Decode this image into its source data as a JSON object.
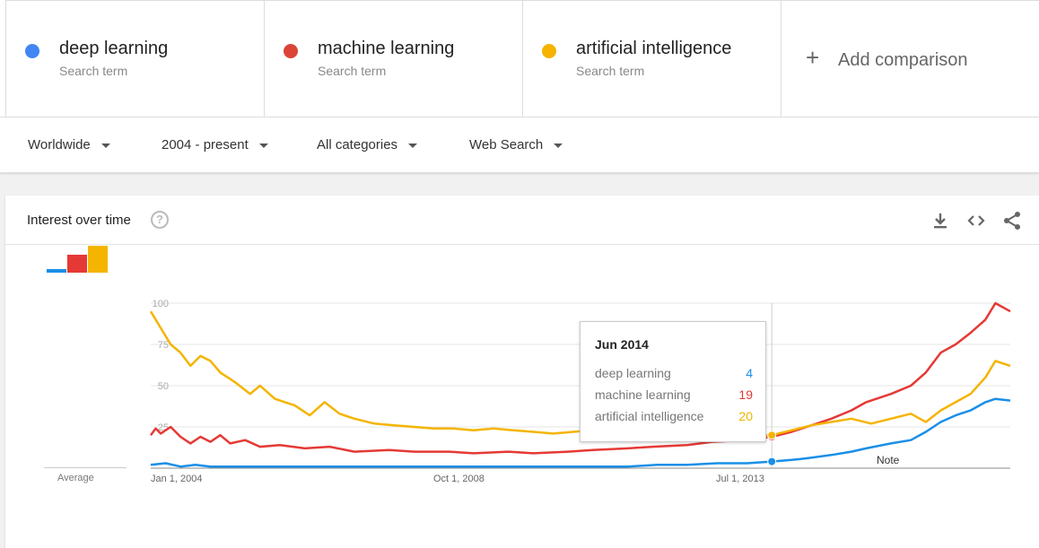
{
  "terms": [
    {
      "name": "deep learning",
      "sub": "Search term",
      "color": "#4285f4"
    },
    {
      "name": "machine learning",
      "sub": "Search term",
      "color": "#db4437"
    },
    {
      "name": "artificial intelligence",
      "sub": "Search term",
      "color": "#f4b400"
    }
  ],
  "add_comparison": {
    "icon": "plus-icon",
    "label": "Add comparison"
  },
  "filters": [
    {
      "label": "Worldwide",
      "icon": "caret-down-icon"
    },
    {
      "label": "2004 - present",
      "icon": "caret-down-icon"
    },
    {
      "label": "All categories",
      "icon": "caret-down-icon"
    },
    {
      "label": "Web Search",
      "icon": "caret-down-icon"
    }
  ],
  "card": {
    "title": "Interest over time",
    "help_icon": "help-icon",
    "help_label": "?",
    "tools": [
      "download-icon",
      "embed-code-icon",
      "share-icon"
    ]
  },
  "average": {
    "label": "Average",
    "values": [
      5,
      22,
      33
    ]
  },
  "tooltip": {
    "date": "Jun 2014",
    "rows": [
      {
        "name": "deep learning",
        "value": "4",
        "color": "#1a8fe8"
      },
      {
        "name": "machine learning",
        "value": "19",
        "color": "#e53935"
      },
      {
        "name": "artificial intelligence",
        "value": "20",
        "color": "#f4b400"
      }
    ]
  },
  "note_label": "Note",
  "chart_data": {
    "type": "line",
    "x_tick_labels": [
      "Jan 1, 2004",
      "Oct 1, 2008",
      "Jul 1, 2013"
    ],
    "ylim": [
      0,
      100
    ],
    "y_ticks": [
      100,
      75,
      50,
      25
    ],
    "grid": true,
    "x_start": "2004-01",
    "x_end": "2018-06",
    "highlight": "2014-06",
    "series": [
      {
        "name": "deep learning",
        "color": "#1a8fe8",
        "points": [
          [
            "2004-01",
            2
          ],
          [
            "2004-04",
            3
          ],
          [
            "2004-07",
            1
          ],
          [
            "2004-10",
            2
          ],
          [
            "2005-01",
            1
          ],
          [
            "2005-06",
            1
          ],
          [
            "2006-01",
            1
          ],
          [
            "2007-01",
            1
          ],
          [
            "2008-01",
            1
          ],
          [
            "2009-01",
            1
          ],
          [
            "2010-01",
            1
          ],
          [
            "2011-01",
            1
          ],
          [
            "2012-01",
            1
          ],
          [
            "2012-07",
            2
          ],
          [
            "2013-01",
            2
          ],
          [
            "2013-07",
            3
          ],
          [
            "2014-01",
            3
          ],
          [
            "2014-06",
            4
          ],
          [
            "2014-10",
            5
          ],
          [
            "2015-01",
            6
          ],
          [
            "2015-06",
            8
          ],
          [
            "2015-10",
            10
          ],
          [
            "2016-01",
            12
          ],
          [
            "2016-06",
            15
          ],
          [
            "2016-10",
            17
          ],
          [
            "2017-01",
            22
          ],
          [
            "2017-04",
            28
          ],
          [
            "2017-07",
            32
          ],
          [
            "2017-10",
            35
          ],
          [
            "2018-01",
            40
          ],
          [
            "2018-03",
            42
          ],
          [
            "2018-06",
            41
          ]
        ]
      },
      {
        "name": "machine learning",
        "color": "#e53935",
        "points": [
          [
            "2004-01",
            20
          ],
          [
            "2004-02",
            24
          ],
          [
            "2004-03",
            21
          ],
          [
            "2004-05",
            25
          ],
          [
            "2004-07",
            19
          ],
          [
            "2004-09",
            15
          ],
          [
            "2004-11",
            19
          ],
          [
            "2005-01",
            16
          ],
          [
            "2005-03",
            20
          ],
          [
            "2005-05",
            15
          ],
          [
            "2005-08",
            17
          ],
          [
            "2005-11",
            13
          ],
          [
            "2006-03",
            14
          ],
          [
            "2006-08",
            12
          ],
          [
            "2007-01",
            13
          ],
          [
            "2007-06",
            10
          ],
          [
            "2008-01",
            11
          ],
          [
            "2008-06",
            10
          ],
          [
            "2009-01",
            10
          ],
          [
            "2009-06",
            9
          ],
          [
            "2010-01",
            10
          ],
          [
            "2010-06",
            9
          ],
          [
            "2011-01",
            10
          ],
          [
            "2011-06",
            11
          ],
          [
            "2012-01",
            12
          ],
          [
            "2012-06",
            13
          ],
          [
            "2013-01",
            14
          ],
          [
            "2013-06",
            16
          ],
          [
            "2014-01",
            17
          ],
          [
            "2014-06",
            19
          ],
          [
            "2014-10",
            22
          ],
          [
            "2015-01",
            25
          ],
          [
            "2015-06",
            30
          ],
          [
            "2015-10",
            35
          ],
          [
            "2016-01",
            40
          ],
          [
            "2016-06",
            45
          ],
          [
            "2016-10",
            50
          ],
          [
            "2017-01",
            58
          ],
          [
            "2017-04",
            70
          ],
          [
            "2017-07",
            75
          ],
          [
            "2017-10",
            82
          ],
          [
            "2018-01",
            90
          ],
          [
            "2018-03",
            100
          ],
          [
            "2018-06",
            95
          ]
        ]
      },
      {
        "name": "artificial intelligence",
        "color": "#f4b400",
        "points": [
          [
            "2004-01",
            95
          ],
          [
            "2004-03",
            85
          ],
          [
            "2004-05",
            75
          ],
          [
            "2004-07",
            70
          ],
          [
            "2004-09",
            62
          ],
          [
            "2004-11",
            68
          ],
          [
            "2005-01",
            65
          ],
          [
            "2005-03",
            58
          ],
          [
            "2005-06",
            52
          ],
          [
            "2005-09",
            45
          ],
          [
            "2005-11",
            50
          ],
          [
            "2006-02",
            42
          ],
          [
            "2006-06",
            38
          ],
          [
            "2006-09",
            32
          ],
          [
            "2006-12",
            40
          ],
          [
            "2007-03",
            33
          ],
          [
            "2007-06",
            30
          ],
          [
            "2007-10",
            27
          ],
          [
            "2008-02",
            26
          ],
          [
            "2008-06",
            25
          ],
          [
            "2008-10",
            24
          ],
          [
            "2009-02",
            24
          ],
          [
            "2009-06",
            23
          ],
          [
            "2009-10",
            24
          ],
          [
            "2010-02",
            23
          ],
          [
            "2010-06",
            22
          ],
          [
            "2010-10",
            21
          ],
          [
            "2011-02",
            22
          ],
          [
            "2011-06",
            23
          ],
          [
            "2011-10",
            22
          ],
          [
            "2012-02",
            21
          ],
          [
            "2012-06",
            22
          ],
          [
            "2012-10",
            21
          ],
          [
            "2013-02",
            20
          ],
          [
            "2013-06",
            20
          ],
          [
            "2013-10",
            20
          ],
          [
            "2014-02",
            20
          ],
          [
            "2014-06",
            20
          ],
          [
            "2014-10",
            23
          ],
          [
            "2015-02",
            26
          ],
          [
            "2015-06",
            28
          ],
          [
            "2015-10",
            30
          ],
          [
            "2016-02",
            27
          ],
          [
            "2016-06",
            30
          ],
          [
            "2016-10",
            33
          ],
          [
            "2017-01",
            28
          ],
          [
            "2017-04",
            35
          ],
          [
            "2017-07",
            40
          ],
          [
            "2017-10",
            45
          ],
          [
            "2018-01",
            55
          ],
          [
            "2018-03",
            65
          ],
          [
            "2018-06",
            62
          ]
        ]
      }
    ]
  }
}
